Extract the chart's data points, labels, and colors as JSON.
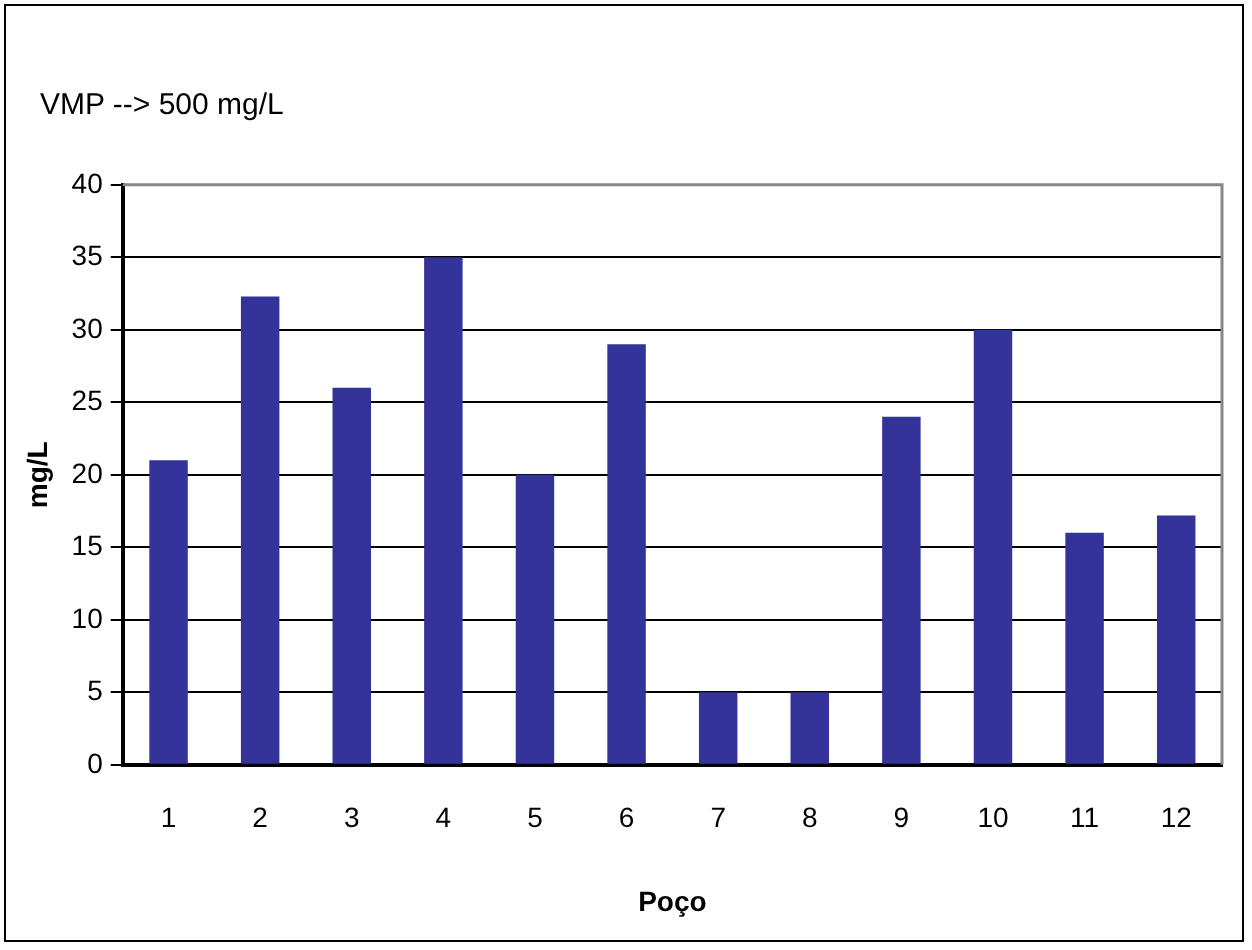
{
  "chart_data": {
    "type": "bar",
    "xlabel": "Poço",
    "ylabel": "mg/L",
    "annotations": [
      "VMP --> 500 mg/L"
    ],
    "categories": [
      "1",
      "2",
      "3",
      "4",
      "5",
      "6",
      "7",
      "8",
      "9",
      "10",
      "11",
      "12"
    ],
    "values": [
      21,
      32.3,
      26,
      35,
      20,
      29,
      5,
      5,
      24,
      30,
      16,
      17.2
    ],
    "color": "#333399",
    "ylim": [
      0,
      40
    ],
    "yticks": [
      0,
      5,
      10,
      15,
      20,
      25,
      30,
      35,
      40
    ],
    "grid": "y",
    "legend": false
  }
}
